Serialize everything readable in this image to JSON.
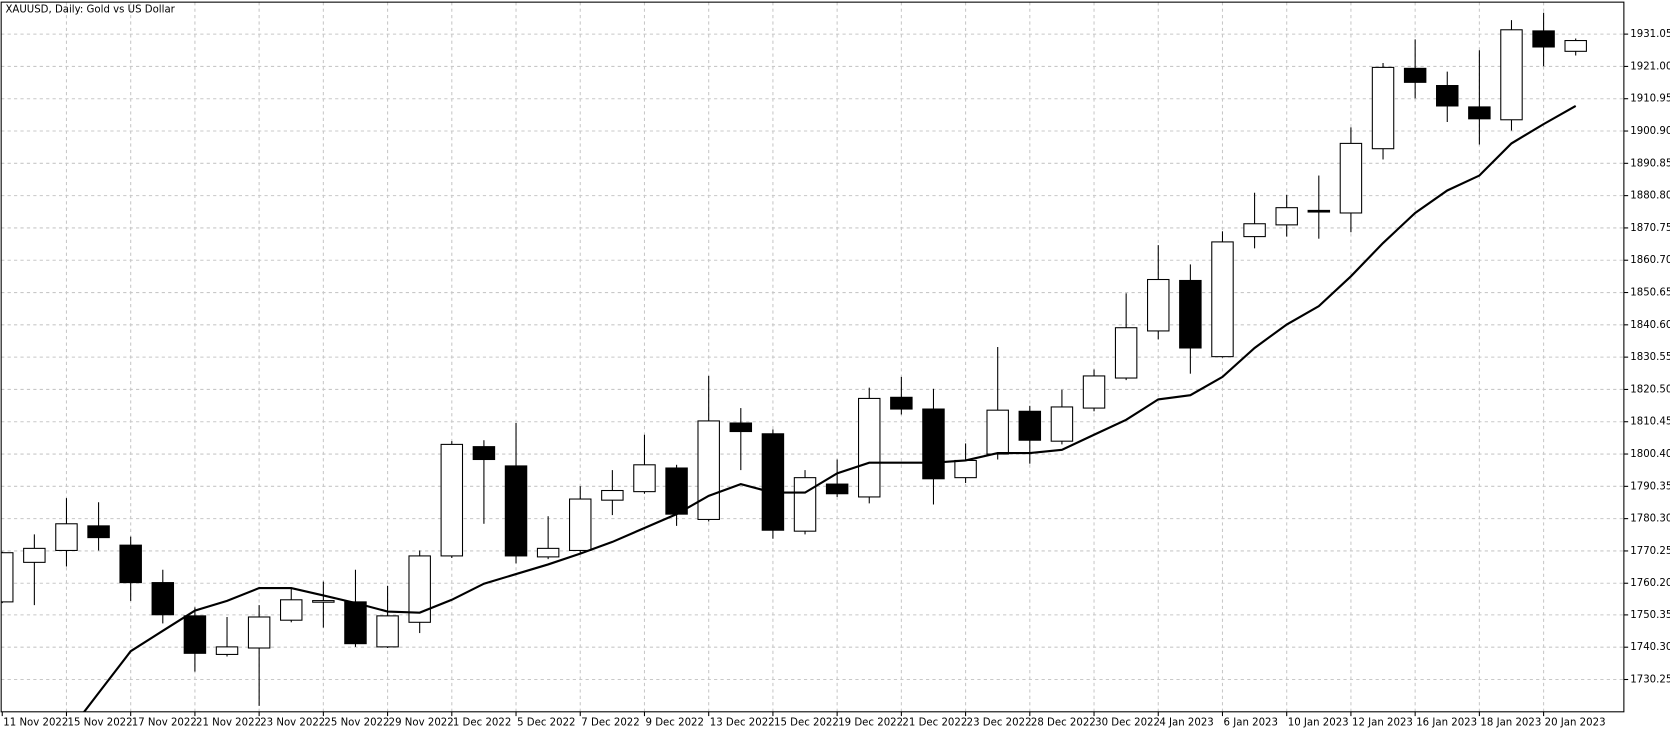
{
  "chart_data": {
    "type": "candlestick",
    "title": "XAUUSD, Daily:  Gold vs US Dollar",
    "categories": [
      "11 Nov 2022",
      null,
      "15 Nov 2022",
      null,
      "17 Nov 2022",
      null,
      "21 Nov 2022",
      null,
      "23 Nov 2022",
      null,
      "25 Nov 2022",
      null,
      "29 Nov 2022",
      null,
      "1 Dec 2022",
      null,
      "5 Dec 2022",
      null,
      "7 Dec 2022",
      null,
      "9 Dec 2022",
      null,
      "13 Dec 2022",
      null,
      "15 Dec 2022",
      null,
      "19 Dec 2022",
      null,
      "21 Dec 2022",
      null,
      "23 Dec 2022",
      null,
      "28 Dec 2022",
      null,
      "30 Dec 2022",
      null,
      "4 Jan 2023",
      null,
      "6 Jan 2023",
      null,
      "10 Jan 2023",
      null,
      "12 Jan 2023",
      null,
      "16 Jan 2023",
      null,
      "18 Jan 2023",
      null,
      "20 Jan 2023",
      null
    ],
    "open": [
      1754.4,
      1766.7,
      1770.4,
      1778.05,
      1772.05,
      1760.4,
      1750.05,
      1738.05,
      1740.05,
      1748.7,
      1754.6,
      1754.4,
      1740.4,
      1748.05,
      1768.7,
      1802.7,
      1796.7,
      1768.4,
      1770.4,
      1786.05,
      1788.7,
      1796.05,
      1780.05,
      1810.05,
      1806.7,
      1776.4,
      1791.05,
      1787.05,
      1818.05,
      1814.4,
      1793.05,
      1800.4,
      1813.7,
      1804.4,
      1814.7,
      1824.05,
      1838.7,
      1854.4,
      1830.7,
      1868.05,
      1871.7,
      1876.2,
      1875.4,
      1895.4,
      1920.4,
      1915.05,
      1908.4,
      1904.4,
      1932.05,
      1925.7
    ],
    "high": [
      1770.0,
      1775.4,
      1786.7,
      1785.4,
      1774.7,
      1764.4,
      1752.7,
      1749.7,
      1753.4,
      1758.7,
      1760.7,
      1764.4,
      1759.4,
      1770.4,
      1804.4,
      1804.7,
      1810.05,
      1781.05,
      1790.4,
      1795.4,
      1806.4,
      1797.05,
      1824.7,
      1814.7,
      1808.05,
      1795.4,
      1798.7,
      1821.05,
      1824.4,
      1820.7,
      1803.7,
      1833.7,
      1815.4,
      1820.4,
      1826.7,
      1850.4,
      1865.4,
      1859.4,
      1869.7,
      1881.7,
      1881.05,
      1887.05,
      1902.05,
      1922.05,
      1929.4,
      1919.4,
      1926.05,
      1935.4,
      1937.7,
      1929.7
    ],
    "low": [
      1754.0,
      1753.4,
      1765.4,
      1770.4,
      1754.7,
      1747.7,
      1732.7,
      1737.4,
      1722.05,
      1748.05,
      1746.4,
      1740.4,
      1740.05,
      1744.7,
      1768.05,
      1778.7,
      1766.4,
      1767.7,
      1769.7,
      1781.4,
      1788.05,
      1778.05,
      1779.4,
      1795.4,
      1774.05,
      1775.4,
      1787.05,
      1785.05,
      1812.7,
      1784.7,
      1791.4,
      1798.7,
      1797.4,
      1803.4,
      1813.7,
      1823.4,
      1836.05,
      1825.4,
      1830.4,
      1864.4,
      1868.05,
      1867.4,
      1869.4,
      1892.05,
      1911.05,
      1903.7,
      1896.7,
      1901.05,
      1921.05,
      1924.4
    ],
    "close": [
      1769.7,
      1771.05,
      1778.7,
      1774.4,
      1760.4,
      1750.4,
      1738.4,
      1740.4,
      1749.7,
      1755.05,
      1754.8,
      1741.4,
      1750.05,
      1768.7,
      1803.4,
      1798.7,
      1768.7,
      1771.05,
      1786.4,
      1789.05,
      1797.05,
      1781.7,
      1810.7,
      1807.4,
      1776.7,
      1793.05,
      1788.05,
      1817.7,
      1814.4,
      1792.7,
      1798.4,
      1814.05,
      1804.7,
      1815.05,
      1824.7,
      1839.7,
      1854.7,
      1833.4,
      1866.4,
      1872.05,
      1877.05,
      1875.8,
      1897.05,
      1920.7,
      1916.05,
      1908.7,
      1904.7,
      1932.4,
      1927.05,
      1929.05
    ],
    "line": {
      "color": "#000000",
      "values": [
        null,
        null,
        1713.0,
        1726.05,
        1739.05,
        1745.4,
        1751.7,
        1754.7,
        1758.7,
        1758.7,
        1756.4,
        1754.05,
        1751.4,
        1751.05,
        1755.05,
        1760.05,
        1763.05,
        1766.05,
        1769.4,
        1773.05,
        1777.4,
        1781.7,
        1787.4,
        1791.05,
        1788.4,
        1788.4,
        1794.4,
        1797.7,
        1797.7,
        1797.7,
        1798.4,
        1800.7,
        1800.7,
        1801.7,
        1806.4,
        1811.05,
        1817.4,
        1818.7,
        1824.4,
        1833.4,
        1840.7,
        1846.4,
        1855.7,
        1866.05,
        1875.4,
        1882.4,
        1887.05,
        1897.05,
        1903.05,
        1908.7
      ]
    },
    "up_color": "#ffffff",
    "down_color": "#000000",
    "edge_color": "#000000",
    "ylim": [
      1720.2,
      1941.0
    ],
    "yticks": [
      1730.25,
      {
        "value": 1740.3,
        "label": "1740.30"
      },
      1750.35,
      {
        "value": 1760.2,
        "label": "1760.20"
      },
      1770.25,
      {
        "value": 1780.3,
        "label": "1780.30"
      },
      1790.35,
      {
        "value": 1800.4,
        "label": "1800.40"
      },
      1810.45,
      {
        "value": 1820.5,
        "label": "1820.50"
      },
      1830.55,
      {
        "value": 1840.6,
        "label": "1840.60"
      },
      1850.65,
      {
        "value": 1860.7,
        "label": "1860.70"
      },
      1870.75,
      {
        "value": 1880.8,
        "label": "1880.80"
      },
      1890.85,
      {
        "value": 1900.9,
        "label": "1900.90"
      },
      1910.95,
      {
        "value": 1921,
        "label": "1921.00"
      },
      1931.05
    ],
    "grid": true
  }
}
